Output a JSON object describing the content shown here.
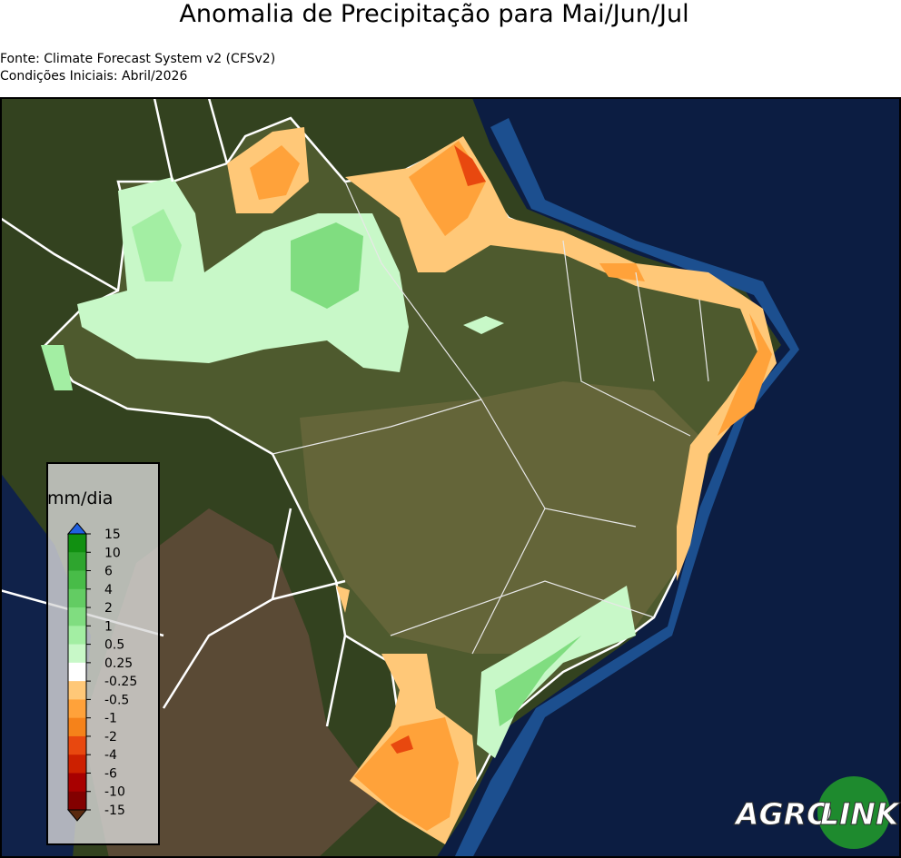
{
  "header": {
    "title": "Anomalia de Precipitação para Mai/Jun/Jul",
    "source": "Fonte: Climate Forecast System v2 (CFSv2)",
    "initial_conditions": "Condições Iniciais: Abril/2026"
  },
  "colorbar": {
    "label": "mm/dia",
    "ticks": [
      "15",
      "10",
      "6",
      "4",
      "2",
      "1",
      "0.5",
      "0.25",
      "-0.25",
      "-0.5",
      "-1",
      "-2",
      "-4",
      "-6",
      "-10",
      "-15"
    ],
    "colors": [
      "#119011",
      "#2ea52e",
      "#48bc48",
      "#63cc63",
      "#80dd80",
      "#a3eea3",
      "#c8f8c8",
      "#ffffff",
      "#ffc878",
      "#ffa23a",
      "#f5821a",
      "#e8480f",
      "#cc2000",
      "#a80000",
      "#820000"
    ],
    "extend_colors": [
      "#2060e0",
      "#5a2a10"
    ]
  },
  "logo": {
    "part1": "AGRO",
    "part2": "LINK"
  }
}
